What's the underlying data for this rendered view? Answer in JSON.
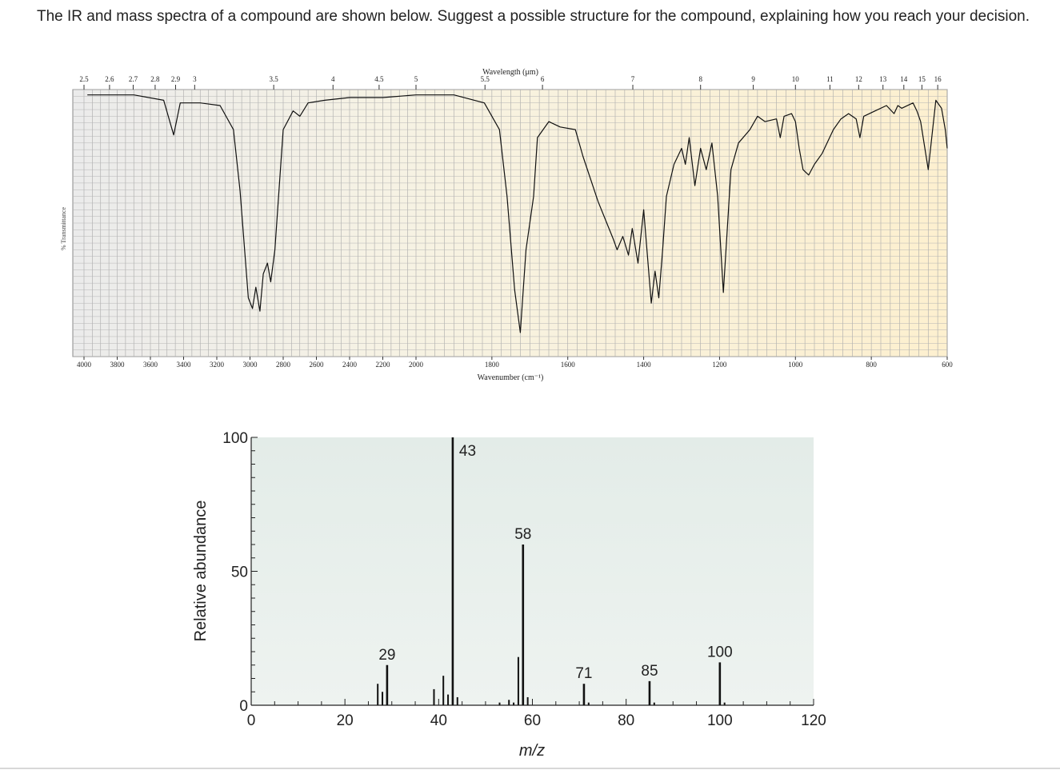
{
  "question": "The IR and mass spectra of a compound are shown below. Suggest a possible structure for the compound, explaining how you reach your decision.",
  "chart_data": [
    {
      "type": "line",
      "name": "IR spectrum",
      "ylabel": "% Transmittance",
      "xlabel": "Wavenumber (cm⁻¹)",
      "top_axis_title": "Wavelength (μm)",
      "xlim": [
        4000,
        600
      ],
      "top_ticks": [
        "2.5",
        "2.6",
        "2.7",
        "2.8",
        "2.9",
        "3",
        "3.5",
        "4",
        "4.5",
        "5",
        "5.5",
        "6",
        "7",
        "8",
        "9",
        "10",
        "11",
        "12",
        "13",
        "14",
        "15",
        "16"
      ],
      "bottom_ticks": [
        "4000",
        "3800",
        "3600",
        "3400",
        "3200",
        "3000",
        "2800",
        "2600",
        "2400",
        "2200",
        "2000",
        "1800",
        "1600",
        "1400",
        "1200",
        "1000",
        "800",
        "600"
      ],
      "grid": true,
      "transmittance_ylim": [
        0,
        100
      ],
      "spectrum": [
        [
          3980,
          98
        ],
        [
          3700,
          98
        ],
        [
          3520,
          96
        ],
        [
          3460,
          83
        ],
        [
          3420,
          95
        ],
        [
          3300,
          95
        ],
        [
          3180,
          94
        ],
        [
          3100,
          85
        ],
        [
          3060,
          62
        ],
        [
          3010,
          22
        ],
        [
          2985,
          18
        ],
        [
          2965,
          26
        ],
        [
          2940,
          17
        ],
        [
          2920,
          31
        ],
        [
          2895,
          35
        ],
        [
          2875,
          28
        ],
        [
          2850,
          40
        ],
        [
          2800,
          85
        ],
        [
          2740,
          92
        ],
        [
          2700,
          90
        ],
        [
          2650,
          95
        ],
        [
          2550,
          96
        ],
        [
          2400,
          97
        ],
        [
          2200,
          97
        ],
        [
          2000,
          98
        ],
        [
          1900,
          98
        ],
        [
          1820,
          95
        ],
        [
          1780,
          85
        ],
        [
          1760,
          60
        ],
        [
          1740,
          25
        ],
        [
          1725,
          9
        ],
        [
          1710,
          40
        ],
        [
          1690,
          60
        ],
        [
          1680,
          82
        ],
        [
          1650,
          88
        ],
        [
          1620,
          86
        ],
        [
          1580,
          85
        ],
        [
          1560,
          75
        ],
        [
          1520,
          58
        ],
        [
          1480,
          44
        ],
        [
          1470,
          40
        ],
        [
          1455,
          45
        ],
        [
          1440,
          38
        ],
        [
          1430,
          48
        ],
        [
          1415,
          35
        ],
        [
          1400,
          55
        ],
        [
          1380,
          20
        ],
        [
          1370,
          32
        ],
        [
          1360,
          22
        ],
        [
          1350,
          40
        ],
        [
          1340,
          60
        ],
        [
          1320,
          72
        ],
        [
          1300,
          78
        ],
        [
          1290,
          72
        ],
        [
          1280,
          82
        ],
        [
          1265,
          64
        ],
        [
          1250,
          78
        ],
        [
          1235,
          70
        ],
        [
          1220,
          80
        ],
        [
          1205,
          60
        ],
        [
          1190,
          24
        ],
        [
          1170,
          70
        ],
        [
          1150,
          80
        ],
        [
          1120,
          85
        ],
        [
          1100,
          90
        ],
        [
          1080,
          88
        ],
        [
          1050,
          89
        ],
        [
          1040,
          82
        ],
        [
          1030,
          90
        ],
        [
          1010,
          91
        ],
        [
          1000,
          88
        ],
        [
          990,
          78
        ],
        [
          980,
          70
        ],
        [
          965,
          68
        ],
        [
          950,
          72
        ],
        [
          930,
          76
        ],
        [
          900,
          85
        ],
        [
          880,
          89
        ],
        [
          860,
          91
        ],
        [
          840,
          89
        ],
        [
          830,
          82
        ],
        [
          820,
          90
        ],
        [
          790,
          92
        ],
        [
          760,
          94
        ],
        [
          740,
          91
        ],
        [
          730,
          94
        ],
        [
          720,
          93
        ],
        [
          690,
          95
        ],
        [
          680,
          92
        ],
        [
          670,
          88
        ],
        [
          650,
          70
        ],
        [
          630,
          96
        ],
        [
          615,
          93
        ],
        [
          605,
          85
        ],
        [
          600,
          78
        ]
      ]
    },
    {
      "type": "bar",
      "name": "Mass spectrum",
      "xlabel": "m/z",
      "ylabel": "Relative abundance",
      "xlim": [
        0,
        120
      ],
      "ylim": [
        0,
        100
      ],
      "x_ticks": [
        0,
        20,
        40,
        60,
        80,
        100,
        120
      ],
      "y_ticks": [
        0,
        50,
        100
      ],
      "labeled_peaks": [
        29,
        43,
        58,
        71,
        85,
        100
      ],
      "peaks": [
        [
          27,
          8
        ],
        [
          28,
          5
        ],
        [
          29,
          15
        ],
        [
          39,
          6
        ],
        [
          41,
          11
        ],
        [
          42,
          4
        ],
        [
          43,
          100
        ],
        [
          44,
          3
        ],
        [
          53,
          1
        ],
        [
          55,
          2
        ],
        [
          56,
          1
        ],
        [
          57,
          18
        ],
        [
          58,
          60
        ],
        [
          59,
          3
        ],
        [
          71,
          8
        ],
        [
          72,
          1
        ],
        [
          85,
          9
        ],
        [
          86,
          1
        ],
        [
          100,
          16
        ],
        [
          101,
          1
        ]
      ]
    }
  ]
}
